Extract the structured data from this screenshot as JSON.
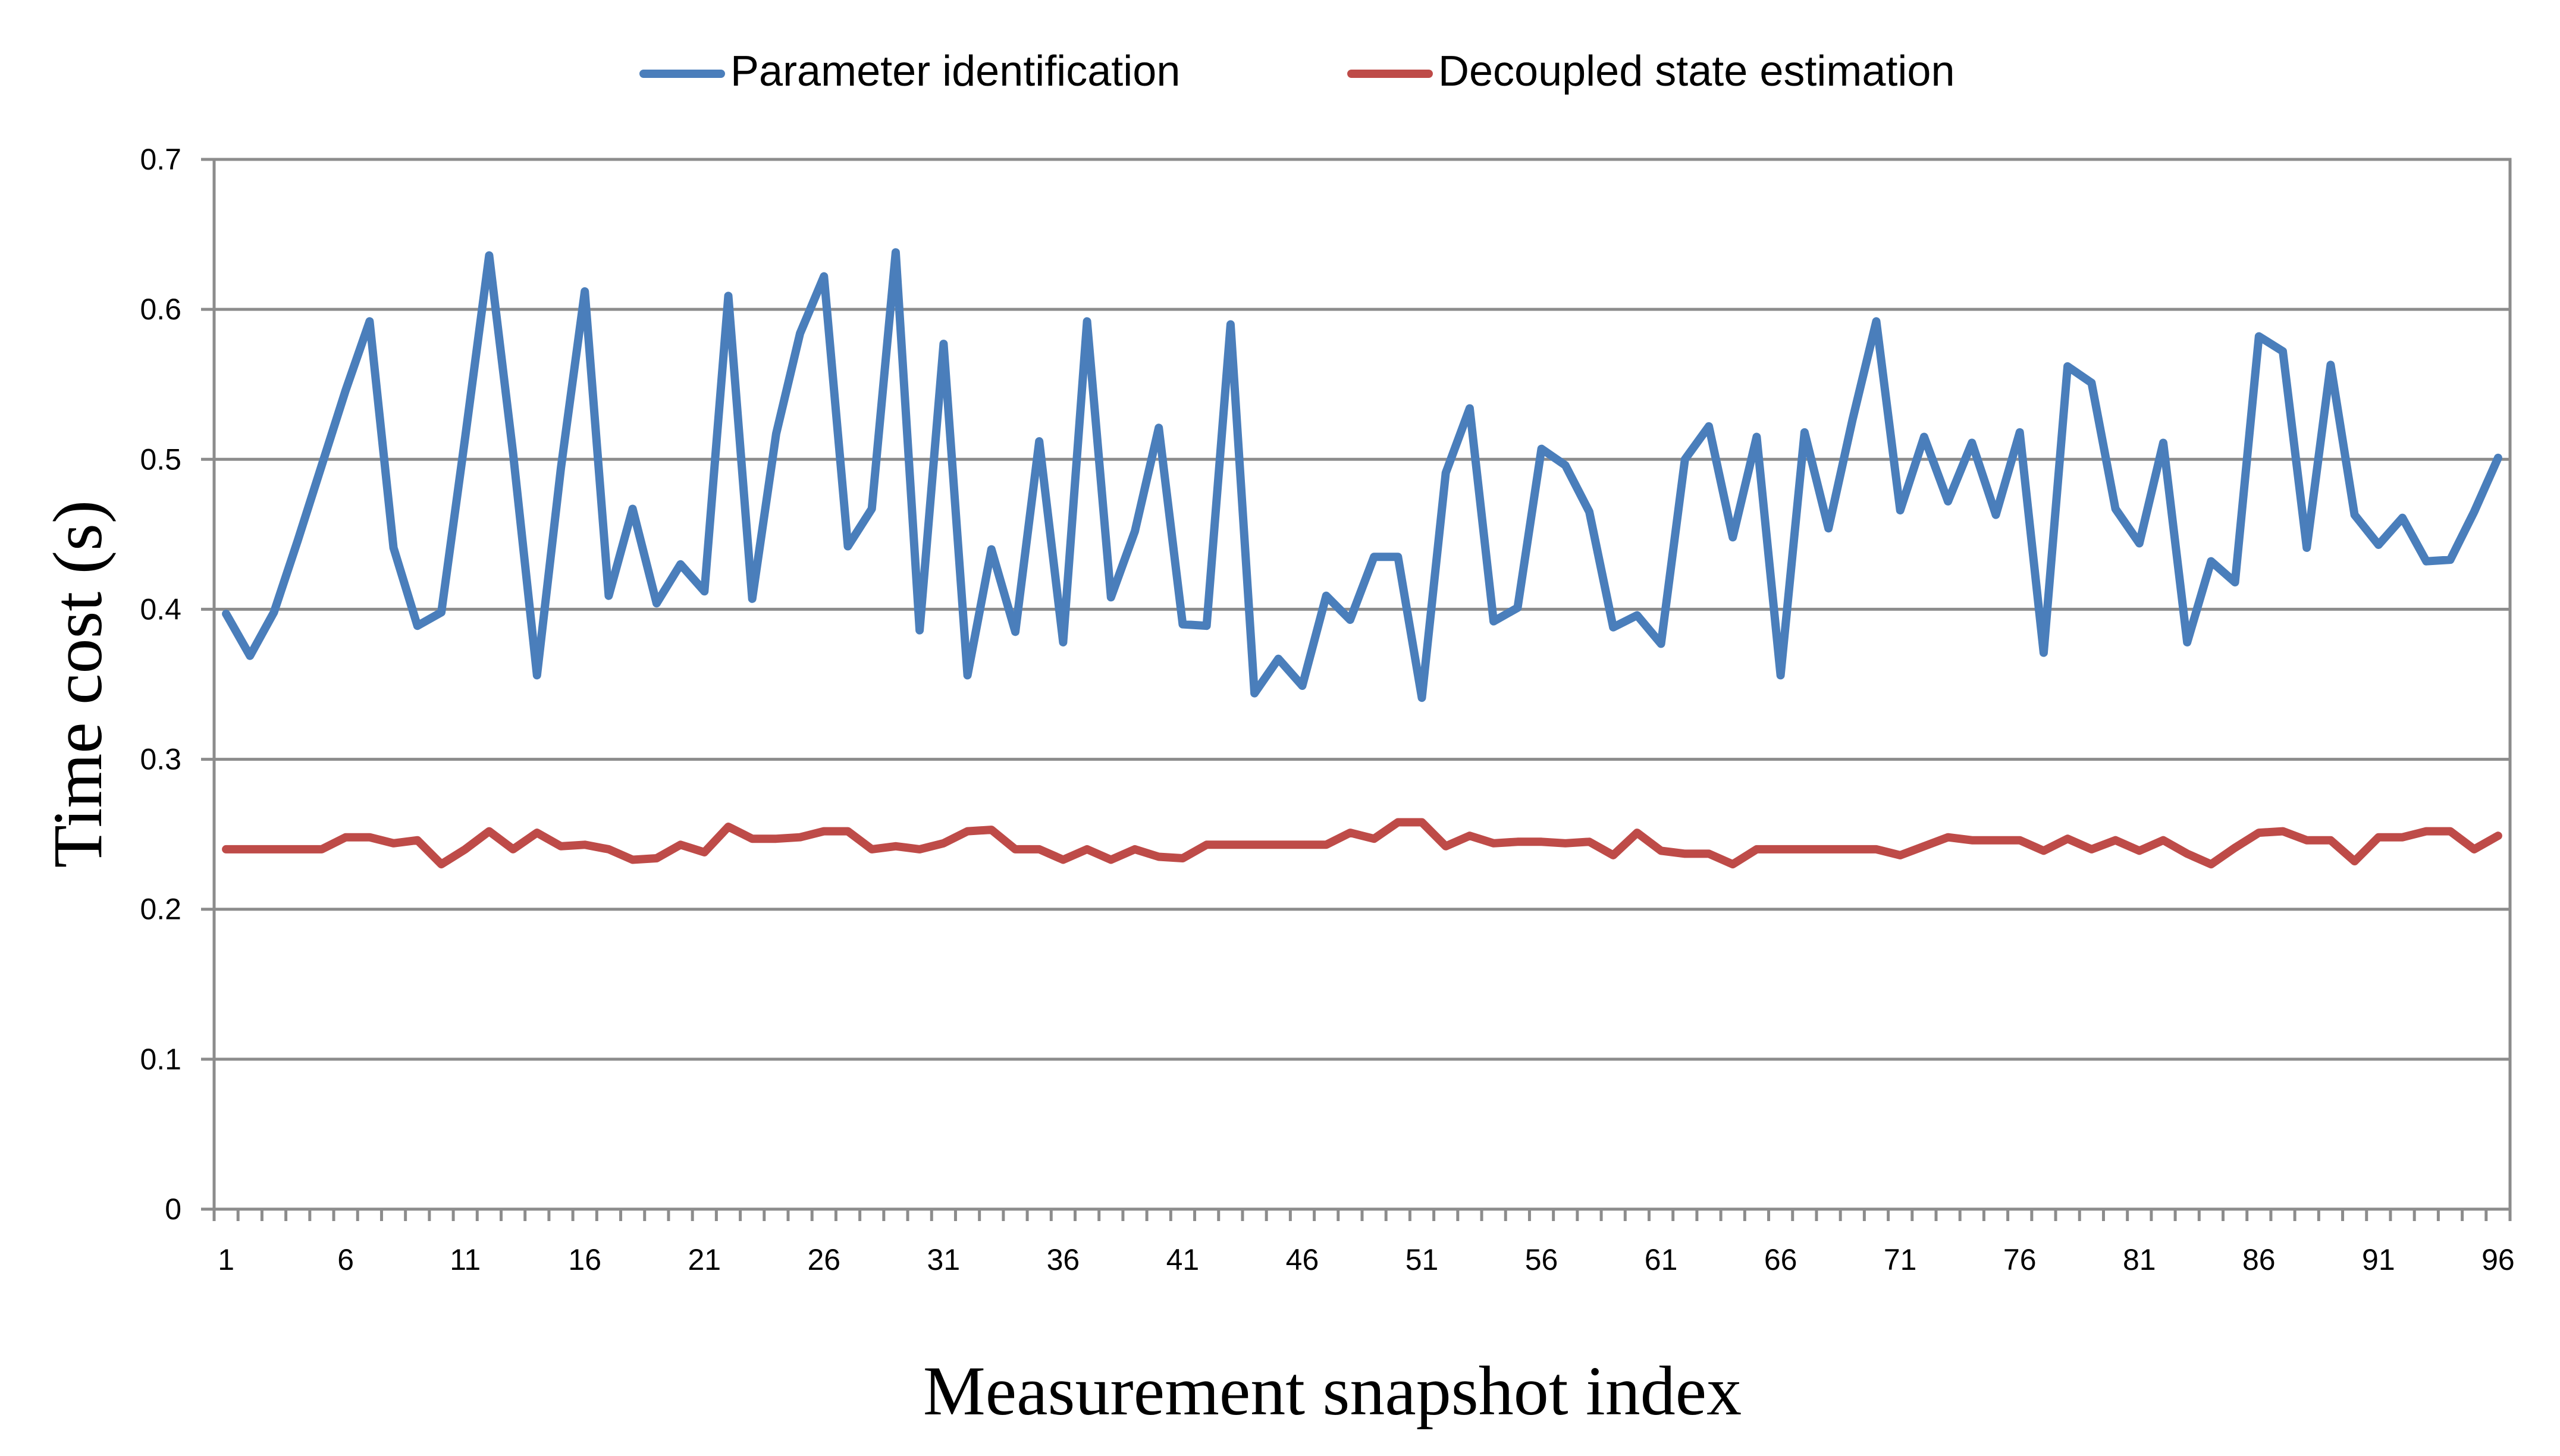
{
  "chart_data": {
    "type": "line",
    "title": "",
    "xlabel": "Measurement snapshot index",
    "ylabel": "Time cost (s)",
    "ylim": [
      0,
      0.7
    ],
    "yticks": [
      "0",
      "0.1",
      "0.2",
      "0.3",
      "0.4",
      "0.5",
      "0.6",
      "0.7"
    ],
    "xtick_labels": [
      "1",
      "6",
      "11",
      "16",
      "21",
      "26",
      "31",
      "36",
      "41",
      "46",
      "51",
      "56",
      "61",
      "66",
      "71",
      "76",
      "81",
      "86",
      "91",
      "96"
    ],
    "grid": true,
    "legend_position": "top-center",
    "x": [
      1,
      2,
      3,
      4,
      5,
      6,
      7,
      8,
      9,
      10,
      11,
      12,
      13,
      14,
      15,
      16,
      17,
      18,
      19,
      20,
      21,
      22,
      23,
      24,
      25,
      26,
      27,
      28,
      29,
      30,
      31,
      32,
      33,
      34,
      35,
      36,
      37,
      38,
      39,
      40,
      41,
      42,
      43,
      44,
      45,
      46,
      47,
      48,
      49,
      50,
      51,
      52,
      53,
      54,
      55,
      56,
      57,
      58,
      59,
      60,
      61,
      62,
      63,
      64,
      65,
      66,
      67,
      68,
      69,
      70,
      71,
      72,
      73,
      74,
      75,
      76,
      77,
      78,
      79,
      80,
      81,
      82,
      83,
      84,
      85,
      86,
      87,
      88,
      89,
      90,
      91,
      92,
      93,
      94,
      95,
      96
    ],
    "series": [
      {
        "name": "Parameter identification",
        "color": "#4a7ebb",
        "values": [
          0.397,
          0.369,
          0.398,
          0.446,
          0.496,
          0.546,
          0.592,
          0.441,
          0.389,
          0.398,
          0.515,
          0.636,
          0.504,
          0.356,
          0.494,
          0.612,
          0.409,
          0.467,
          0.404,
          0.43,
          0.412,
          0.609,
          0.407,
          0.517,
          0.584,
          0.622,
          0.442,
          0.467,
          0.638,
          0.386,
          0.577,
          0.356,
          0.44,
          0.385,
          0.512,
          0.378,
          0.592,
          0.408,
          0.452,
          0.521,
          0.39,
          0.389,
          0.59,
          0.344,
          0.367,
          0.349,
          0.409,
          0.393,
          0.435,
          0.435,
          0.341,
          0.491,
          0.534,
          0.392,
          0.401,
          0.507,
          0.496,
          0.465,
          0.388,
          0.396,
          0.377,
          0.5,
          0.522,
          0.448,
          0.515,
          0.356,
          0.518,
          0.454,
          0.526,
          0.592,
          0.466,
          0.515,
          0.472,
          0.511,
          0.463,
          0.518,
          0.371,
          0.562,
          0.551,
          0.467,
          0.444,
          0.511,
          0.378,
          0.432,
          0.418,
          0.582,
          0.572,
          0.441,
          0.563,
          0.463,
          0.443,
          0.461,
          0.432,
          0.433,
          0.465,
          0.501
        ]
      },
      {
        "name": "Decoupled state estimation",
        "color": "#be4b48",
        "values": [
          0.24,
          0.24,
          0.24,
          0.24,
          0.24,
          0.248,
          0.248,
          0.244,
          0.246,
          0.23,
          0.24,
          0.252,
          0.24,
          0.251,
          0.242,
          0.243,
          0.24,
          0.233,
          0.234,
          0.243,
          0.238,
          0.255,
          0.247,
          0.247,
          0.248,
          0.252,
          0.252,
          0.24,
          0.242,
          0.24,
          0.244,
          0.252,
          0.253,
          0.24,
          0.24,
          0.233,
          0.24,
          0.233,
          0.24,
          0.235,
          0.234,
          0.243,
          0.243,
          0.243,
          0.243,
          0.243,
          0.243,
          0.251,
          0.247,
          0.258,
          0.258,
          0.242,
          0.249,
          0.244,
          0.245,
          0.245,
          0.244,
          0.245,
          0.236,
          0.251,
          0.239,
          0.237,
          0.237,
          0.23,
          0.24,
          0.24,
          0.24,
          0.24,
          0.24,
          0.24,
          0.236,
          0.242,
          0.248,
          0.246,
          0.246,
          0.246,
          0.239,
          0.247,
          0.24,
          0.246,
          0.239,
          0.246,
          0.237,
          0.23,
          0.241,
          0.251,
          0.252,
          0.246,
          0.246,
          0.232,
          0.248,
          0.248,
          0.252,
          0.252,
          0.24,
          0.249
        ]
      }
    ]
  }
}
